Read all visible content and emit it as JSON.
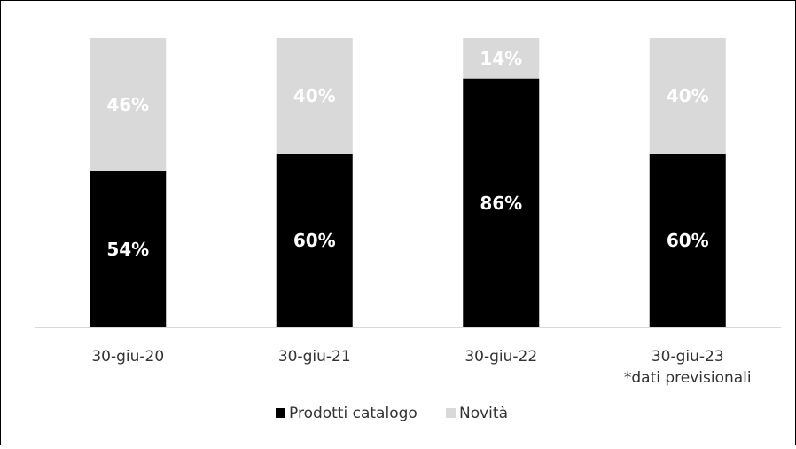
{
  "chart_data": {
    "type": "bar",
    "stacked": true,
    "percent_stacked": true,
    "categories": [
      "30-giu-20",
      "30-giu-21",
      "30-giu-22",
      "30-giu-23"
    ],
    "category_sublabels": [
      "",
      "",
      "",
      "*dati previsionali"
    ],
    "series": [
      {
        "name": "Prodotti catalogo",
        "values": [
          54,
          60,
          86,
          60
        ],
        "labels": [
          "54%",
          "60%",
          "86%",
          "60%"
        ],
        "color": "#000000"
      },
      {
        "name": "Novità",
        "values": [
          46,
          40,
          14,
          40
        ],
        "labels": [
          "46%",
          "40%",
          "14%",
          "40%"
        ],
        "color": "#d9d9d9"
      }
    ],
    "ylim": [
      0,
      100
    ],
    "yaxis_visible": false,
    "grid": false,
    "legend": {
      "position": "bottom"
    },
    "title": "",
    "xlabel": "",
    "ylabel": ""
  }
}
